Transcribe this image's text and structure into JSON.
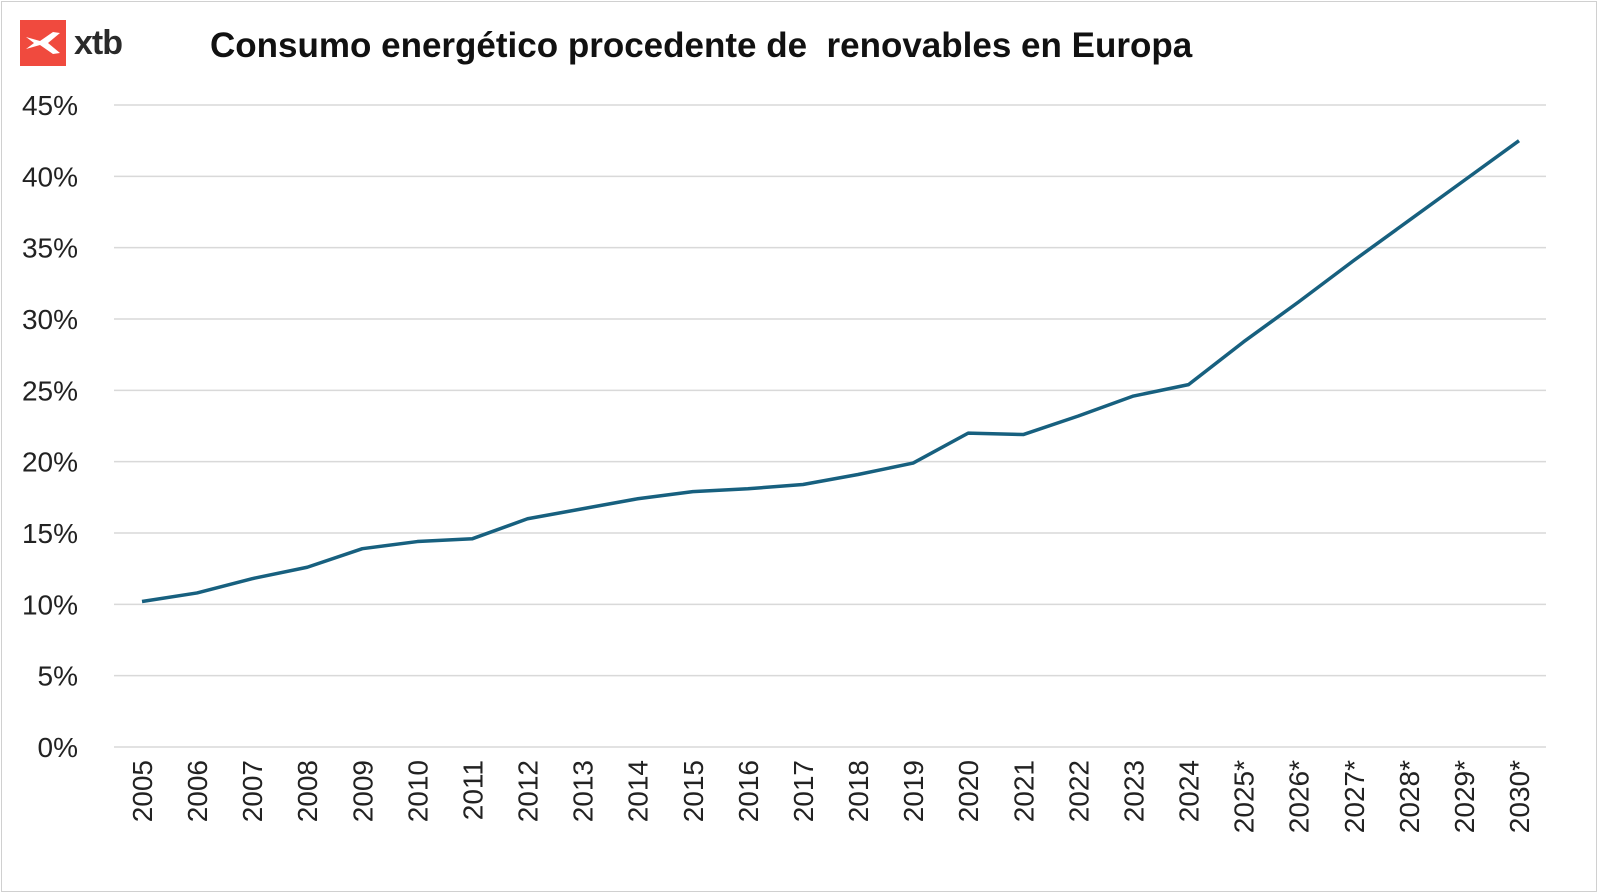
{
  "logo": {
    "text": "xtb",
    "color": "#f04a3e"
  },
  "chart_data": {
    "type": "line",
    "title": "Consumo energético procedente de  renovables en Europa",
    "xlabel": "",
    "ylabel": "",
    "categories": [
      "2005",
      "2006",
      "2007",
      "2008",
      "2009",
      "2010",
      "2011",
      "2012",
      "2013",
      "2014",
      "2015",
      "2016",
      "2017",
      "2018",
      "2019",
      "2020",
      "2021",
      "2022",
      "2023",
      "2024",
      "2025*",
      "2026*",
      "2027*",
      "2028*",
      "2029*",
      "2030*"
    ],
    "series": [
      {
        "values": [
          10.2,
          10.8,
          11.8,
          12.6,
          13.9,
          14.4,
          14.6,
          16.0,
          16.7,
          17.4,
          17.9,
          18.1,
          18.4,
          19.1,
          19.9,
          22.0,
          21.9,
          23.2,
          24.6,
          25.4,
          28.4,
          31.2,
          34.1,
          36.9,
          39.7,
          42.5
        ],
        "color": "#17607f"
      }
    ],
    "ylim": [
      0,
      45
    ],
    "yticks": [
      0,
      5,
      10,
      15,
      20,
      25,
      30,
      35,
      40,
      45
    ],
    "ytick_labels": [
      "0%",
      "5%",
      "10%",
      "15%",
      "20%",
      "25%",
      "30%",
      "35%",
      "40%",
      "45%"
    ],
    "grid": true,
    "legend": "none"
  }
}
